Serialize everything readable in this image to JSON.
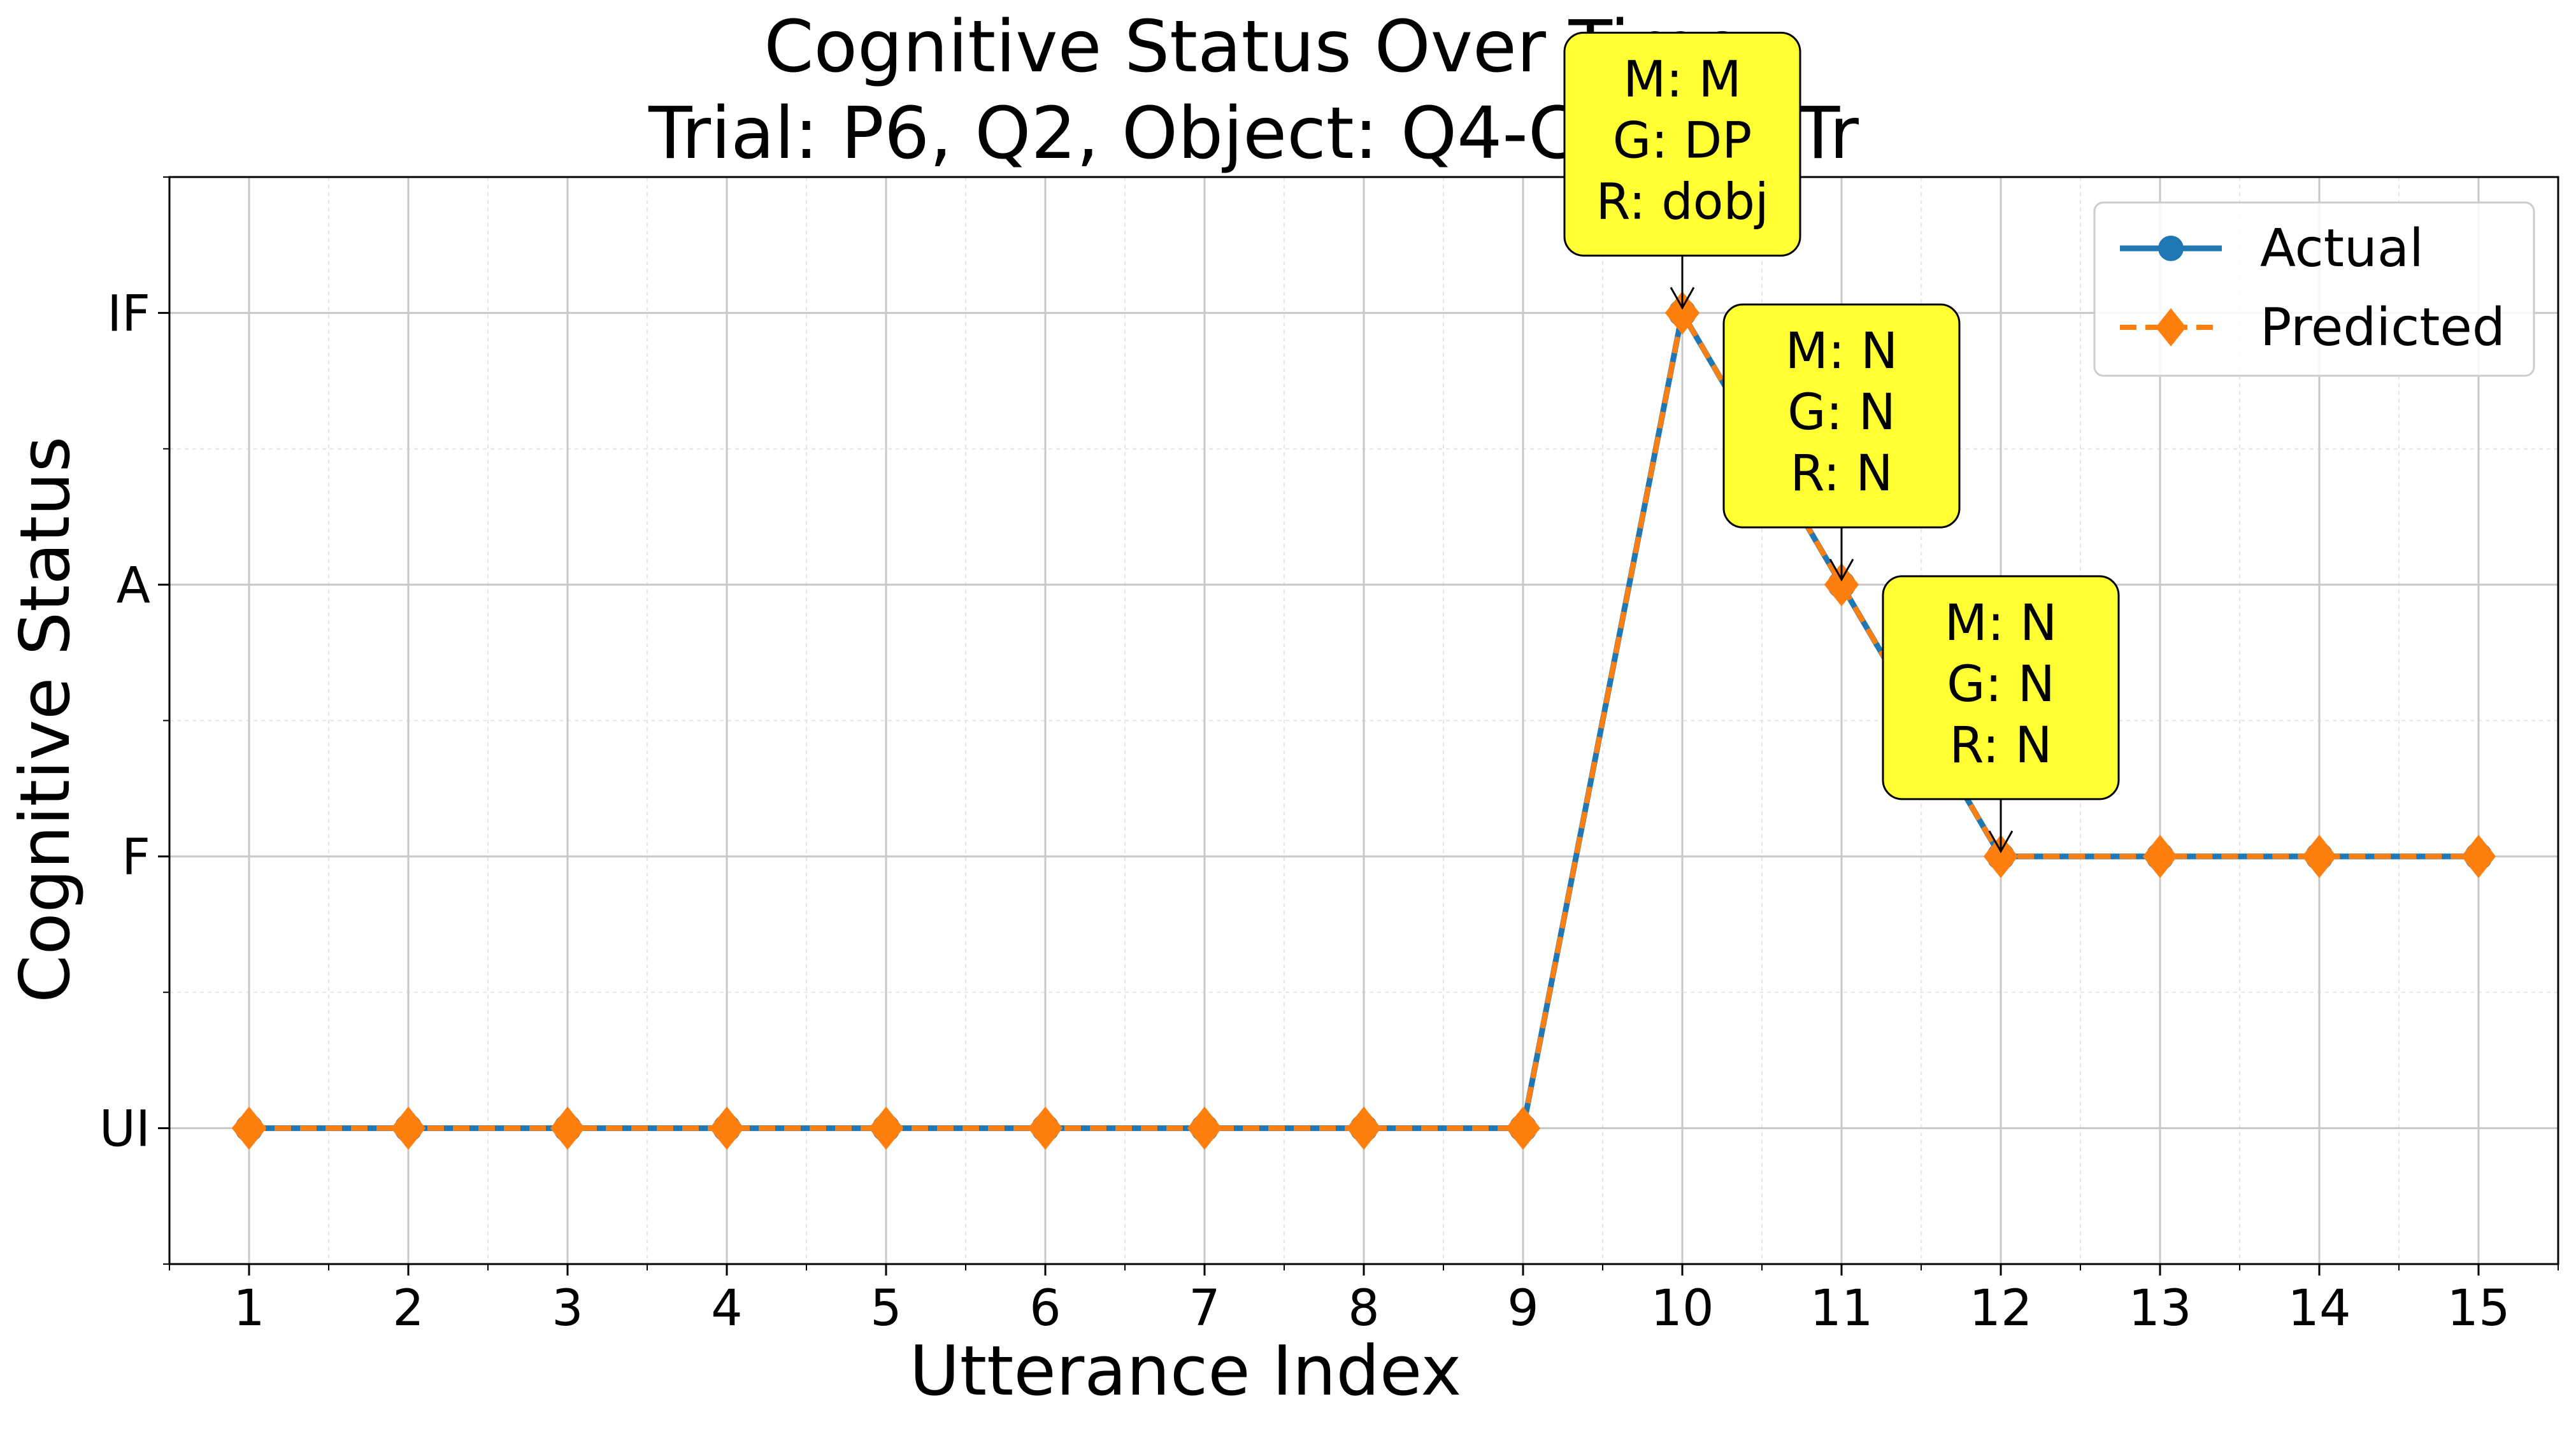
{
  "chart_data": {
    "type": "line",
    "title": [
      "Cognitive Status Over Time",
      "Trial: P6, Q2, Object: Q4-C23-Gr-Tr"
    ],
    "xlabel": "Utterance Index",
    "ylabel": "Cognitive Status",
    "x": [
      1,
      2,
      3,
      4,
      5,
      6,
      7,
      8,
      9,
      10,
      11,
      12,
      13,
      14,
      15
    ],
    "y_categories": [
      "UI",
      "F",
      "A",
      "IF"
    ],
    "xlim": [
      0.5,
      15.5
    ],
    "ylim": [
      -0.5,
      3.5
    ],
    "grid": true,
    "legend_position": "top-right",
    "series": [
      {
        "name": "Actual",
        "color": "#1f77b4",
        "style": "solid",
        "marker": "circle",
        "values": [
          "UI",
          "UI",
          "UI",
          "UI",
          "UI",
          "UI",
          "UI",
          "UI",
          "UI",
          "IF",
          "A",
          "F",
          "F",
          "F",
          "F"
        ]
      },
      {
        "name": "Predicted",
        "color": "#ff7f0e",
        "style": "dashed",
        "marker": "diamond",
        "values": [
          "UI",
          "UI",
          "UI",
          "UI",
          "UI",
          "UI",
          "UI",
          "UI",
          "UI",
          "IF",
          "A",
          "F",
          "F",
          "F",
          "F"
        ]
      }
    ],
    "annotations": [
      {
        "x": 10,
        "y": "IF",
        "lines": [
          "M: M",
          "G: DP",
          "R: dobj"
        ]
      },
      {
        "x": 11,
        "y": "A",
        "lines": [
          "M: N",
          "G: N",
          "R: N"
        ]
      },
      {
        "x": 12,
        "y": "F",
        "lines": [
          "M: N",
          "G: N",
          "R: N"
        ]
      }
    ],
    "annotation_color": "#ffff33"
  }
}
